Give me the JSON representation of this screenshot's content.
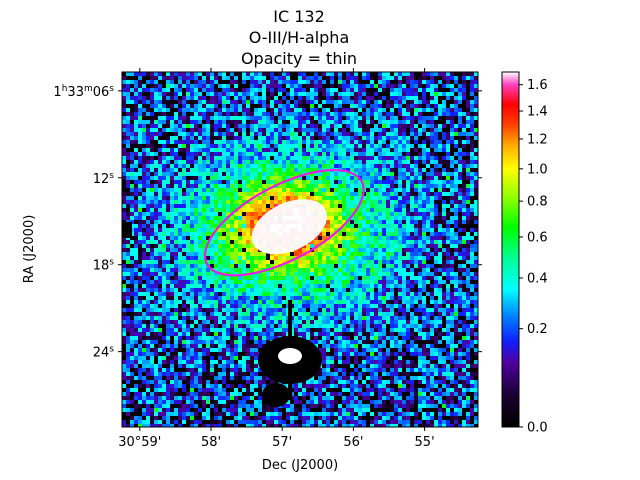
{
  "chart_data": {
    "type": "heatmap",
    "title_lines": [
      "IC 132",
      "O-III/H-alpha",
      "Opacity = thin"
    ],
    "xlabel": "Dec (J2000)",
    "ylabel": "RA (J2000)",
    "x_ticks": [
      {
        "label": "30°59'",
        "value": 59
      },
      {
        "label": "58'",
        "value": 58
      },
      {
        "label": "57'",
        "value": 57
      },
      {
        "label": "56'",
        "value": 56
      },
      {
        "label": "55'",
        "value": 55
      }
    ],
    "y_ticks": [
      {
        "h": "1",
        "m": "33",
        "s": "06",
        "value": 6,
        "full": true
      },
      {
        "s": "12",
        "value": 12
      },
      {
        "s": "18",
        "value": 18
      },
      {
        "s": "24",
        "value": 24
      }
    ],
    "x_range": [
      59.25,
      54.25
    ],
    "y_range": [
      4.7,
      29.2
    ],
    "colorbar": {
      "colormap": "gist_ncar-like",
      "range": [
        0.0,
        1.7
      ],
      "ticks": [
        0.0,
        0.2,
        0.4,
        0.6,
        0.8,
        1.0,
        1.2,
        1.4,
        1.6
      ],
      "tick_labels": [
        "0.0",
        "0.2",
        "0.4",
        "0.6",
        "0.8",
        "1.0",
        "1.2",
        "1.4",
        "1.6"
      ],
      "stops": [
        {
          "v": 0.0,
          "color": "#000000"
        },
        {
          "v": 0.03,
          "color": "#1a0030"
        },
        {
          "v": 0.1,
          "color": "#5000a0"
        },
        {
          "v": 0.16,
          "color": "#1020ff"
        },
        {
          "v": 0.25,
          "color": "#0088ff"
        },
        {
          "v": 0.35,
          "color": "#00ffff"
        },
        {
          "v": 0.5,
          "color": "#00ff90"
        },
        {
          "v": 0.65,
          "color": "#00ff00"
        },
        {
          "v": 0.82,
          "color": "#90ff00"
        },
        {
          "v": 1.0,
          "color": "#ffff00"
        },
        {
          "v": 1.15,
          "color": "#ffb000"
        },
        {
          "v": 1.3,
          "color": "#ff4000"
        },
        {
          "v": 1.45,
          "color": "#ff0000"
        },
        {
          "v": 1.6,
          "color": "#ff40c0"
        },
        {
          "v": 1.7,
          "color": "#ffffff"
        }
      ]
    },
    "ellipse": {
      "color": "#e61ee6",
      "center_dec": 56.97,
      "center_ra": 15.1,
      "semi_dec": 1.0,
      "semi_ra": 3.7,
      "angle_deg": -28
    }
  }
}
